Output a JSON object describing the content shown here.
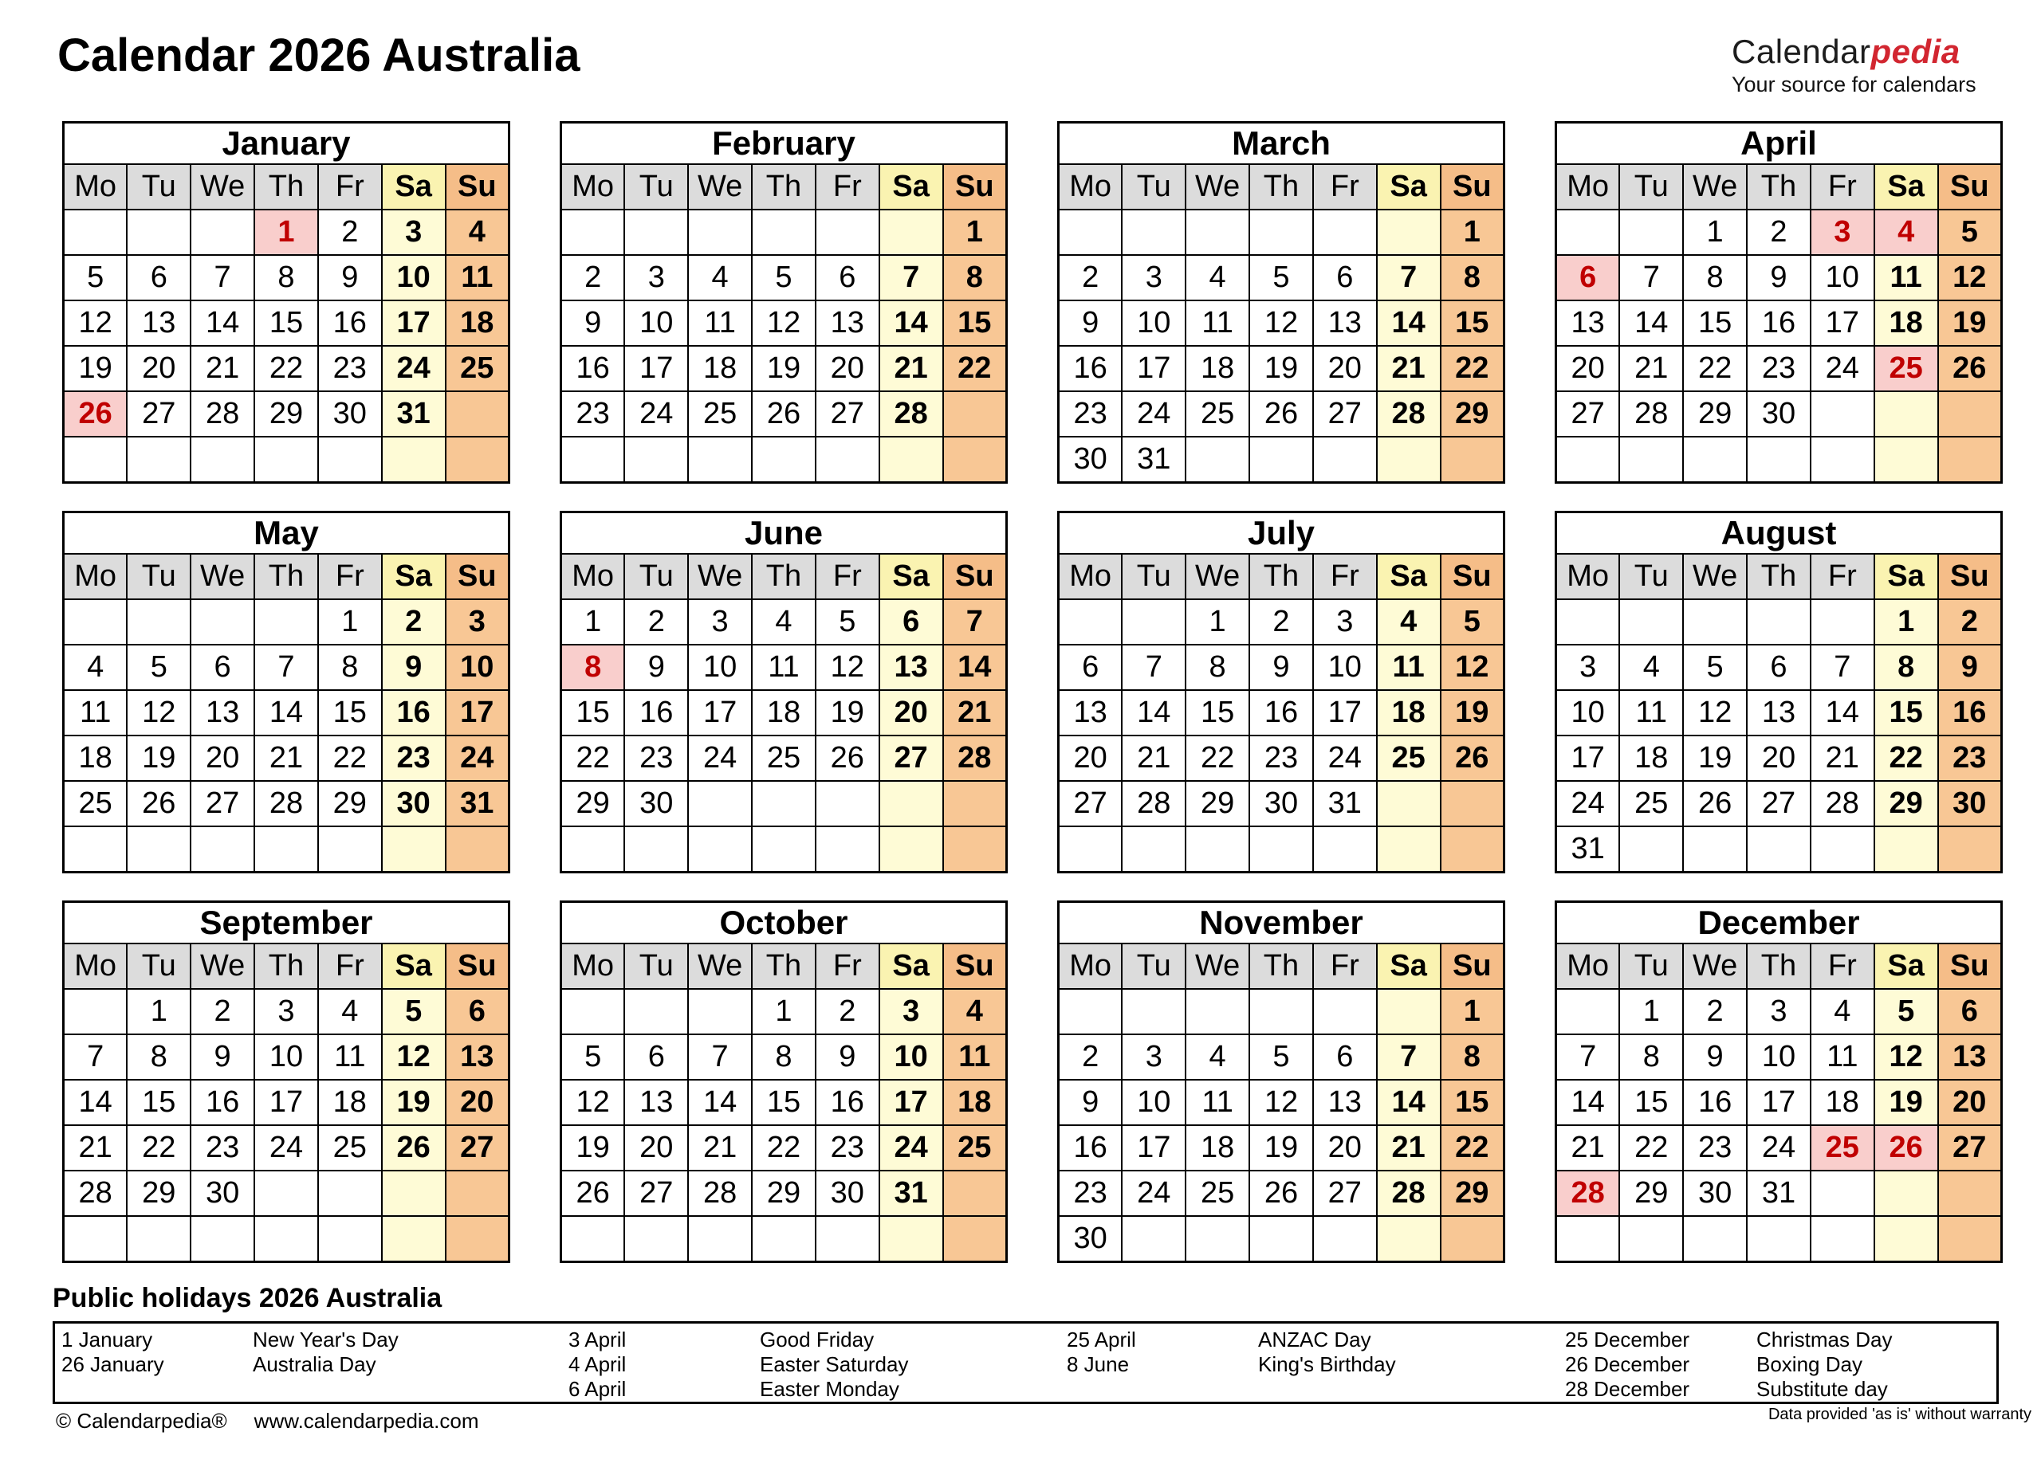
{
  "header": {
    "title": "Calendar 2026 Australia",
    "logo": {
      "black": "Calendar",
      "red": "pedia",
      "tagline": "Your source for calendars"
    }
  },
  "colors": {
    "weekday_header_bg": "#DCDCDC",
    "saturday_header_bg": "#FAF3B1",
    "saturday_bg": "#FEFBD6",
    "sunday_header_bg": "#F5BD88",
    "sunday_bg": "#F8C795",
    "holiday_bg": "#F9CECC",
    "holiday_text": "#C00000",
    "logo_red": "#D22630",
    "border": "#000000"
  },
  "calendar": {
    "day_headers": [
      "Mo",
      "Tu",
      "We",
      "Th",
      "Fr",
      "Sa",
      "Su"
    ],
    "months": [
      {
        "name": "January",
        "holidays": [
          1,
          26
        ],
        "weeks": [
          [
            "",
            "",
            "",
            1,
            2,
            3,
            4
          ],
          [
            5,
            6,
            7,
            8,
            9,
            10,
            11
          ],
          [
            12,
            13,
            14,
            15,
            16,
            17,
            18
          ],
          [
            19,
            20,
            21,
            22,
            23,
            24,
            25
          ],
          [
            26,
            27,
            28,
            29,
            30,
            31,
            ""
          ],
          [
            "",
            "",
            "",
            "",
            "",
            "",
            ""
          ]
        ]
      },
      {
        "name": "February",
        "holidays": [],
        "weeks": [
          [
            "",
            "",
            "",
            "",
            "",
            "",
            1
          ],
          [
            2,
            3,
            4,
            5,
            6,
            7,
            8
          ],
          [
            9,
            10,
            11,
            12,
            13,
            14,
            15
          ],
          [
            16,
            17,
            18,
            19,
            20,
            21,
            22
          ],
          [
            23,
            24,
            25,
            26,
            27,
            28,
            ""
          ],
          [
            "",
            "",
            "",
            "",
            "",
            "",
            ""
          ]
        ]
      },
      {
        "name": "March",
        "holidays": [],
        "weeks": [
          [
            "",
            "",
            "",
            "",
            "",
            "",
            1
          ],
          [
            2,
            3,
            4,
            5,
            6,
            7,
            8
          ],
          [
            9,
            10,
            11,
            12,
            13,
            14,
            15
          ],
          [
            16,
            17,
            18,
            19,
            20,
            21,
            22
          ],
          [
            23,
            24,
            25,
            26,
            27,
            28,
            29
          ],
          [
            30,
            31,
            "",
            "",
            "",
            "",
            ""
          ]
        ]
      },
      {
        "name": "April",
        "holidays": [
          3,
          4,
          6,
          25
        ],
        "weeks": [
          [
            "",
            "",
            1,
            2,
            3,
            4,
            5
          ],
          [
            6,
            7,
            8,
            9,
            10,
            11,
            12
          ],
          [
            13,
            14,
            15,
            16,
            17,
            18,
            19
          ],
          [
            20,
            21,
            22,
            23,
            24,
            25,
            26
          ],
          [
            27,
            28,
            29,
            30,
            "",
            "",
            ""
          ],
          [
            "",
            "",
            "",
            "",
            "",
            "",
            ""
          ]
        ]
      },
      {
        "name": "May",
        "holidays": [],
        "weeks": [
          [
            "",
            "",
            "",
            "",
            1,
            2,
            3
          ],
          [
            4,
            5,
            6,
            7,
            8,
            9,
            10
          ],
          [
            11,
            12,
            13,
            14,
            15,
            16,
            17
          ],
          [
            18,
            19,
            20,
            21,
            22,
            23,
            24
          ],
          [
            25,
            26,
            27,
            28,
            29,
            30,
            31
          ],
          [
            "",
            "",
            "",
            "",
            "",
            "",
            ""
          ]
        ]
      },
      {
        "name": "June",
        "holidays": [
          8
        ],
        "weeks": [
          [
            1,
            2,
            3,
            4,
            5,
            6,
            7
          ],
          [
            8,
            9,
            10,
            11,
            12,
            13,
            14
          ],
          [
            15,
            16,
            17,
            18,
            19,
            20,
            21
          ],
          [
            22,
            23,
            24,
            25,
            26,
            27,
            28
          ],
          [
            29,
            30,
            "",
            "",
            "",
            "",
            ""
          ],
          [
            "",
            "",
            "",
            "",
            "",
            "",
            ""
          ]
        ]
      },
      {
        "name": "July",
        "holidays": [],
        "weeks": [
          [
            "",
            "",
            1,
            2,
            3,
            4,
            5
          ],
          [
            6,
            7,
            8,
            9,
            10,
            11,
            12
          ],
          [
            13,
            14,
            15,
            16,
            17,
            18,
            19
          ],
          [
            20,
            21,
            22,
            23,
            24,
            25,
            26
          ],
          [
            27,
            28,
            29,
            30,
            31,
            "",
            ""
          ],
          [
            "",
            "",
            "",
            "",
            "",
            "",
            ""
          ]
        ]
      },
      {
        "name": "August",
        "holidays": [],
        "weeks": [
          [
            "",
            "",
            "",
            "",
            "",
            1,
            2
          ],
          [
            3,
            4,
            5,
            6,
            7,
            8,
            9
          ],
          [
            10,
            11,
            12,
            13,
            14,
            15,
            16
          ],
          [
            17,
            18,
            19,
            20,
            21,
            22,
            23
          ],
          [
            24,
            25,
            26,
            27,
            28,
            29,
            30
          ],
          [
            31,
            "",
            "",
            "",
            "",
            "",
            ""
          ]
        ]
      },
      {
        "name": "September",
        "holidays": [],
        "weeks": [
          [
            "",
            1,
            2,
            3,
            4,
            5,
            6
          ],
          [
            7,
            8,
            9,
            10,
            11,
            12,
            13
          ],
          [
            14,
            15,
            16,
            17,
            18,
            19,
            20
          ],
          [
            21,
            22,
            23,
            24,
            25,
            26,
            27
          ],
          [
            28,
            29,
            30,
            "",
            "",
            "",
            ""
          ],
          [
            "",
            "",
            "",
            "",
            "",
            "",
            ""
          ]
        ]
      },
      {
        "name": "October",
        "holidays": [],
        "weeks": [
          [
            "",
            "",
            "",
            1,
            2,
            3,
            4
          ],
          [
            5,
            6,
            7,
            8,
            9,
            10,
            11
          ],
          [
            12,
            13,
            14,
            15,
            16,
            17,
            18
          ],
          [
            19,
            20,
            21,
            22,
            23,
            24,
            25
          ],
          [
            26,
            27,
            28,
            29,
            30,
            31,
            ""
          ],
          [
            "",
            "",
            "",
            "",
            "",
            "",
            ""
          ]
        ]
      },
      {
        "name": "November",
        "holidays": [],
        "weeks": [
          [
            "",
            "",
            "",
            "",
            "",
            "",
            1
          ],
          [
            2,
            3,
            4,
            5,
            6,
            7,
            8
          ],
          [
            9,
            10,
            11,
            12,
            13,
            14,
            15
          ],
          [
            16,
            17,
            18,
            19,
            20,
            21,
            22
          ],
          [
            23,
            24,
            25,
            26,
            27,
            28,
            29
          ],
          [
            30,
            "",
            "",
            "",
            "",
            "",
            ""
          ]
        ]
      },
      {
        "name": "December",
        "holidays": [
          25,
          26,
          28
        ],
        "weeks": [
          [
            "",
            1,
            2,
            3,
            4,
            5,
            6
          ],
          [
            7,
            8,
            9,
            10,
            11,
            12,
            13
          ],
          [
            14,
            15,
            16,
            17,
            18,
            19,
            20
          ],
          [
            21,
            22,
            23,
            24,
            25,
            26,
            27
          ],
          [
            28,
            29,
            30,
            31,
            "",
            "",
            ""
          ],
          [
            "",
            "",
            "",
            "",
            "",
            "",
            ""
          ]
        ]
      }
    ]
  },
  "holidays": {
    "title": "Public holidays 2026 Australia",
    "groups": [
      [
        [
          "1 January",
          "New Year's Day"
        ],
        [
          "26 January",
          "Australia Day"
        ]
      ],
      [
        [
          "3 April",
          "Good Friday"
        ],
        [
          "4 April",
          "Easter Saturday"
        ],
        [
          "6 April",
          "Easter Monday"
        ]
      ],
      [
        [
          "25 April",
          "ANZAC Day"
        ],
        [
          "8 June",
          "King's Birthday"
        ]
      ],
      [
        [
          "25 December",
          "Christmas Day"
        ],
        [
          "26 December",
          "Boxing Day"
        ],
        [
          "28 December",
          "Substitute day"
        ]
      ]
    ]
  },
  "footer": {
    "copyright": "© Calendarpedia®",
    "website": "www.calendarpedia.com",
    "disclaimer": "Data provided 'as is' without warranty"
  }
}
